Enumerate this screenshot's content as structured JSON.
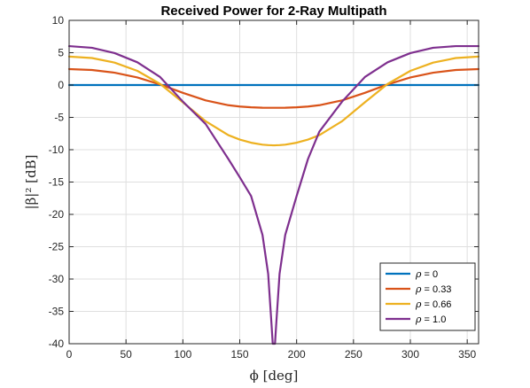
{
  "chart_data": {
    "type": "line",
    "title": "Received Power for 2-Ray Multipath",
    "xlabel": "ϕ [deg]",
    "ylabel": "|β|² [dB]",
    "xlim": [
      0,
      360
    ],
    "ylim": [
      -40,
      10
    ],
    "xticks": [
      0,
      50,
      100,
      150,
      200,
      250,
      300,
      350
    ],
    "yticks": [
      10,
      5,
      0,
      -5,
      -10,
      -15,
      -20,
      -25,
      -30,
      -35,
      -40
    ],
    "grid": true,
    "legend": {
      "position": "bottom-right"
    },
    "x": [
      0,
      20,
      40,
      60,
      80,
      100,
      120,
      140,
      150,
      160,
      170,
      175,
      178,
      179,
      180,
      181,
      182,
      185,
      190,
      200,
      210,
      220,
      240,
      260,
      280,
      300,
      320,
      340,
      360
    ],
    "series": [
      {
        "symbol": "ρ",
        "value": "0",
        "color": "#0072BD",
        "values": [
          0,
          0,
          0,
          0,
          0,
          0,
          0,
          0,
          0,
          0,
          0,
          0,
          0,
          0,
          0,
          0,
          0,
          0,
          0,
          0,
          0,
          0,
          0,
          0,
          0,
          0,
          0,
          0,
          0
        ]
      },
      {
        "symbol": "ρ",
        "value": "0.33",
        "color": "#D95319",
        "values": [
          2.47,
          2.33,
          1.91,
          1.17,
          0.09,
          -1.21,
          -2.37,
          -3.12,
          -3.32,
          -3.44,
          -3.51,
          -3.52,
          -3.52,
          -3.52,
          -3.52,
          -3.52,
          -3.52,
          -3.52,
          -3.51,
          -3.44,
          -3.32,
          -3.12,
          -2.37,
          -1.21,
          0.09,
          1.17,
          1.91,
          2.33,
          2.47
        ]
      },
      {
        "symbol": "ρ",
        "value": "0.66",
        "color": "#EDB120",
        "values": [
          4.4,
          4.18,
          3.47,
          2.19,
          0.17,
          -2.67,
          -5.59,
          -7.75,
          -8.43,
          -8.92,
          -9.22,
          -9.29,
          -9.31,
          -9.32,
          -9.32,
          -9.32,
          -9.31,
          -9.29,
          -9.22,
          -8.92,
          -8.43,
          -7.75,
          -5.59,
          -2.67,
          0.17,
          2.19,
          3.47,
          4.18,
          4.4
        ]
      },
      {
        "symbol": "ρ",
        "value": "1.0",
        "color": "#7E2F8E",
        "values": [
          6.02,
          5.76,
          4.94,
          3.52,
          1.24,
          -2.56,
          -6.02,
          -11.44,
          -14.25,
          -17.16,
          -23.18,
          -29.2,
          -37.16,
          -40,
          -40,
          -40,
          -37.16,
          -29.2,
          -23.18,
          -17.16,
          -11.44,
          -7.2,
          -2.56,
          1.24,
          3.52,
          4.94,
          5.76,
          6.02,
          6.02
        ]
      }
    ]
  }
}
